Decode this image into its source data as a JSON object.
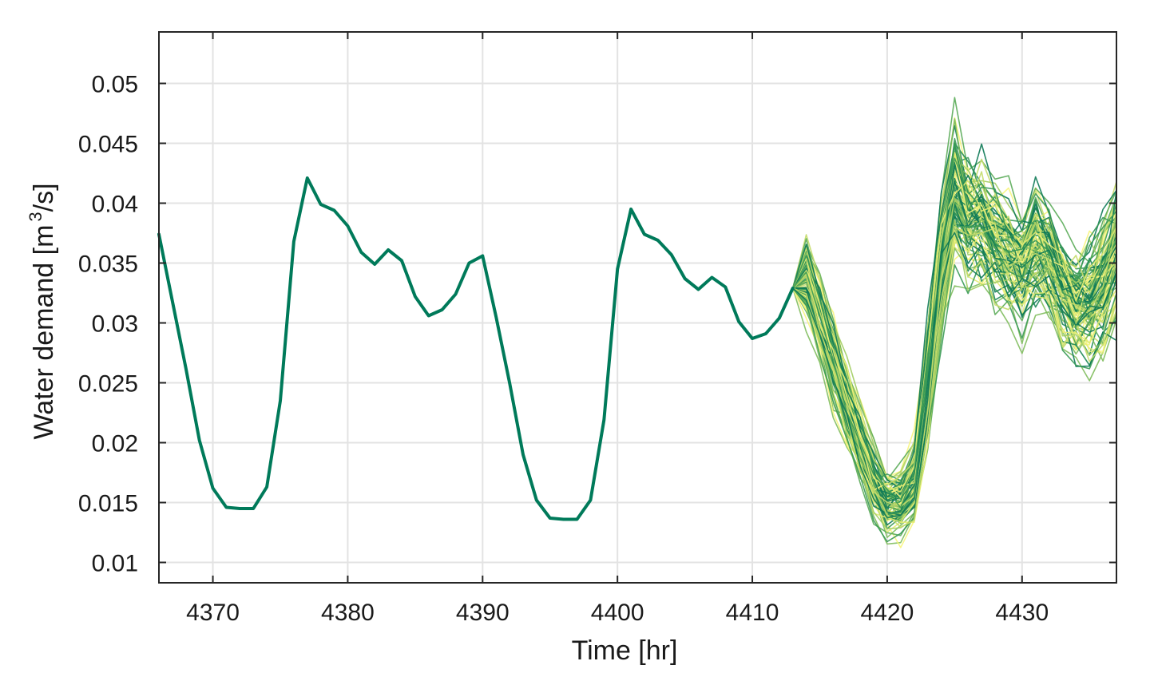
{
  "chart_data": {
    "type": "line",
    "title": "",
    "xlabel": "Time [hr]",
    "ylabel_parts": [
      "Water demand [m",
      "3",
      "/s]"
    ],
    "xlim": [
      4366,
      4437
    ],
    "ylim": [
      0.0083,
      0.0543
    ],
    "xticks": [
      4370,
      4380,
      4390,
      4400,
      4410,
      4420,
      4430
    ],
    "xtick_labels": [
      "4370",
      "4380",
      "4390",
      "4400",
      "4410",
      "4420",
      "4430"
    ],
    "yticks": [
      0.01,
      0.015,
      0.02,
      0.025,
      0.03,
      0.035,
      0.04,
      0.045,
      0.05
    ],
    "ytick_labels": [
      "0.01",
      "0.015",
      "0.02",
      "0.025",
      "0.03",
      "0.035",
      "0.04",
      "0.045",
      "0.05"
    ],
    "grid": true,
    "legend": "none",
    "observed": {
      "color": "#007a5a",
      "x": [
        4366,
        4367,
        4368,
        4369,
        4370,
        4371,
        4372,
        4373,
        4374,
        4375,
        4376,
        4377,
        4378,
        4379,
        4380,
        4381,
        4382,
        4383,
        4384,
        4385,
        4386,
        4387,
        4388,
        4389,
        4390,
        4391,
        4392,
        4393,
        4394,
        4395,
        4396,
        4397,
        4398,
        4399,
        4400,
        4401,
        4402,
        4403,
        4404,
        4405,
        4406,
        4407,
        4408,
        4409,
        4410,
        4411,
        4412,
        4413
      ],
      "y": [
        0.0374,
        0.0318,
        0.0262,
        0.0202,
        0.0162,
        0.0146,
        0.0145,
        0.0145,
        0.0163,
        0.0235,
        0.0368,
        0.0421,
        0.0399,
        0.0394,
        0.0381,
        0.0359,
        0.0349,
        0.0361,
        0.0352,
        0.0322,
        0.0306,
        0.0311,
        0.0324,
        0.035,
        0.0356,
        0.0305,
        0.025,
        0.019,
        0.0152,
        0.0137,
        0.0136,
        0.0136,
        0.0152,
        0.0219,
        0.0345,
        0.0395,
        0.0374,
        0.0369,
        0.0357,
        0.0337,
        0.0328,
        0.0338,
        0.033,
        0.0301,
        0.0287,
        0.0291,
        0.0304,
        0.0329
      ]
    },
    "forecast": {
      "count": 100,
      "x": [
        4413,
        4414,
        4415,
        4416,
        4417,
        4418,
        4419,
        4420,
        4421,
        4422,
        4423,
        4424,
        4425,
        4426,
        4427,
        4428,
        4429,
        4430,
        4431,
        4432,
        4433,
        4434,
        4435,
        4436,
        4437
      ],
      "mean": [
        0.0329,
        0.0338,
        0.0305,
        0.0268,
        0.0232,
        0.0198,
        0.0168,
        0.015,
        0.015,
        0.0168,
        0.025,
        0.035,
        0.041,
        0.0388,
        0.0382,
        0.0368,
        0.0355,
        0.0345,
        0.0362,
        0.0352,
        0.033,
        0.0312,
        0.0316,
        0.033,
        0.036
      ],
      "spread": [
        0,
        0.0018,
        0.002,
        0.0022,
        0.0022,
        0.002,
        0.0018,
        0.0016,
        0.0018,
        0.0022,
        0.0032,
        0.004,
        0.004,
        0.0034,
        0.0034,
        0.0032,
        0.0032,
        0.0034,
        0.0034,
        0.0032,
        0.003,
        0.003,
        0.0032,
        0.0034,
        0.0038
      ],
      "palette": [
        "#0e7a57",
        "#1f8a56",
        "#3a9a55",
        "#5aab58",
        "#7fbd5d",
        "#a2cd63",
        "#c4dc6a",
        "#e3ec72",
        "#f7f57c"
      ]
    }
  }
}
